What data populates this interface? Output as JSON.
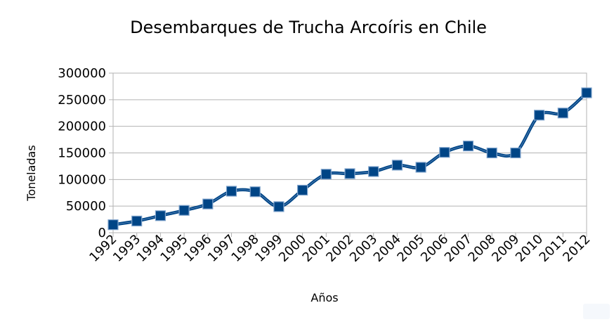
{
  "chart_data": {
    "type": "line",
    "title": "Desembarques de Trucha Arcoíris en Chile",
    "xlabel": "Años",
    "ylabel": "Toneladas",
    "categories": [
      "1992",
      "1993",
      "1994",
      "1995",
      "1996",
      "1997",
      "1998",
      "1999",
      "2000",
      "2001",
      "2002",
      "2003",
      "2004",
      "2005",
      "2006",
      "2007",
      "2008",
      "2009",
      "2010",
      "2011",
      "2012"
    ],
    "series": [
      {
        "values": [
          15000,
          22000,
          32000,
          42000,
          54000,
          78000,
          77000,
          49000,
          80000,
          110000,
          111000,
          115000,
          127000,
          123000,
          151000,
          163000,
          150000,
          150000,
          221000,
          225000,
          263000
        ],
        "color": "#004586",
        "marker": "square",
        "smooth": true
      }
    ],
    "ylim": [
      0,
      300000
    ],
    "yticks": [
      0,
      50000,
      100000,
      150000,
      200000,
      250000,
      300000
    ],
    "ytick_labels": [
      "0",
      "50000",
      "100000",
      "150000",
      "200000",
      "250000",
      "300000"
    ],
    "grid": true,
    "legend": "none",
    "xtick_rotation": -45
  }
}
